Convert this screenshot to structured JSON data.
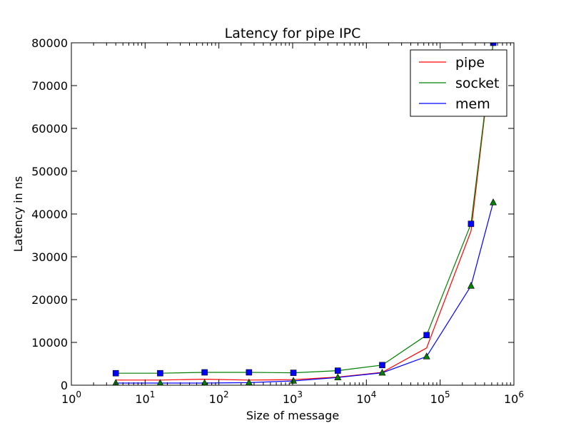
{
  "chart_data": {
    "type": "line",
    "title": "Latency for pipe IPC",
    "xlabel": "Size of message",
    "ylabel": "Latency in ns",
    "xscale": "log",
    "xlim": [
      1,
      1000000
    ],
    "ylim": [
      0,
      80000
    ],
    "x_ticks": [
      1,
      10,
      100,
      1000,
      10000,
      100000,
      1000000
    ],
    "x_tick_labels": [
      {
        "base": "10",
        "exp": "0"
      },
      {
        "base": "10",
        "exp": "1"
      },
      {
        "base": "10",
        "exp": "2"
      },
      {
        "base": "10",
        "exp": "3"
      },
      {
        "base": "10",
        "exp": "4"
      },
      {
        "base": "10",
        "exp": "5"
      },
      {
        "base": "10",
        "exp": "6"
      }
    ],
    "y_ticks": [
      0,
      10000,
      20000,
      30000,
      40000,
      50000,
      60000,
      70000,
      80000
    ],
    "y_tick_labels": [
      "0",
      "10000",
      "20000",
      "30000",
      "40000",
      "50000",
      "60000",
      "70000",
      "80000"
    ],
    "grid": false,
    "legend_position": "top-right",
    "x": [
      4,
      16,
      64,
      256,
      1024,
      4096,
      16384,
      65536,
      262144,
      524288
    ],
    "series": [
      {
        "name": "pipe",
        "color": "#ff0000",
        "values": [
          1200,
          1200,
          1400,
          1200,
          1300,
          1900,
          3000,
          8700,
          36000,
          80000
        ]
      },
      {
        "name": "socket",
        "color": "#008000",
        "marker": "square",
        "marker_color": "#0000ff",
        "values": [
          2800,
          2800,
          3000,
          3000,
          2900,
          3400,
          4700,
          11700,
          37700,
          80000
        ]
      },
      {
        "name": "mem",
        "color": "#0000ff",
        "marker": "triangle",
        "marker_color": "#008000",
        "values": [
          500,
          500,
          500,
          600,
          1000,
          1800,
          2900,
          6700,
          23200,
          42700
        ]
      }
    ]
  }
}
